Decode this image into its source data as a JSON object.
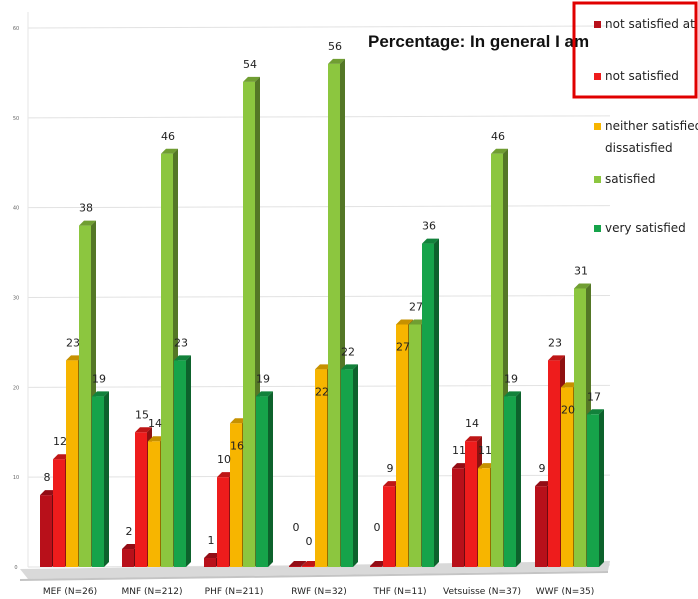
{
  "chart_data": {
    "type": "bar",
    "title": "Percentage: In general I am",
    "categories": [
      "MEF (N=26)",
      "MNF (N=212)",
      "PHF (N=211)",
      "RWF (N=32)",
      "THF (N=11)",
      "Vetsuisse (N=37)",
      "WWF (N=35)"
    ],
    "series": [
      {
        "name": "not satisfied at all",
        "color": "#b8101a",
        "values": [
          8,
          2,
          1,
          0,
          0,
          11,
          9
        ]
      },
      {
        "name": "not satisfied",
        "color": "#ee1c1c",
        "values": [
          12,
          15,
          10,
          0,
          9,
          14,
          23
        ]
      },
      {
        "name": "neither satisfied nor dissatisfied",
        "color": "#f7b500",
        "values": [
          23,
          14,
          16,
          22,
          27,
          11,
          20
        ]
      },
      {
        "name": "satisfied",
        "color": "#8cc63f",
        "values": [
          38,
          46,
          54,
          56,
          27,
          46,
          31
        ]
      },
      {
        "name": "very satisfied",
        "color": "#16a34a",
        "values": [
          19,
          23,
          19,
          22,
          36,
          19,
          17
        ]
      }
    ],
    "data_labels_shown": [
      [
        true,
        true,
        true,
        true,
        true
      ],
      [
        true,
        true,
        true,
        true,
        true
      ],
      [
        true,
        true,
        true,
        true,
        true
      ],
      [
        true,
        true,
        true,
        true,
        true
      ],
      [
        true,
        true,
        true,
        true,
        true
      ],
      [
        true,
        true,
        true,
        true,
        true
      ],
      [
        true,
        true,
        true,
        true,
        true
      ]
    ],
    "yticks": [
      0,
      10,
      20,
      30,
      40,
      50,
      60
    ],
    "ylim": [
      0,
      60
    ],
    "legend": {
      "position": "right",
      "entries": [
        "not satisfied at all",
        "not satisfied",
        "neither satisfied nor",
        "dissatisfied",
        "satisfied",
        "very satisfied"
      ]
    },
    "highlight_box_color": "#e00000",
    "style": "3d-bars"
  }
}
